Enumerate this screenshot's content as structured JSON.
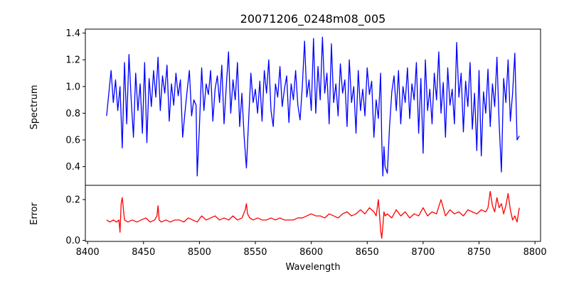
{
  "chart_data": [
    {
      "type": "line",
      "title": "20071206_0248m08_005",
      "xlabel": "",
      "ylabel": "Spectrum",
      "xlim": [
        8398,
        8805
      ],
      "ylim": [
        0.26,
        1.43
      ],
      "yticks": [
        0.4,
        0.6,
        0.8,
        1.0,
        1.2,
        1.4
      ],
      "ytick_labels": [
        "0.4",
        "0.6",
        "0.8",
        "1.0",
        "1.2",
        "1.4"
      ],
      "color": "#0000ff",
      "series": [
        {
          "x": [
            8417,
            8419,
            8421,
            8423,
            8425,
            8427,
            8429,
            8431,
            8433,
            8435,
            8437,
            8439,
            8441,
            8443,
            8445,
            8447,
            8449,
            8451,
            8453,
            8455,
            8457,
            8459,
            8461,
            8463,
            8465,
            8467,
            8469,
            8471,
            8473,
            8475,
            8477,
            8479,
            8481,
            8483,
            8485,
            8487,
            8489,
            8491,
            8493,
            8495,
            8497,
            8498,
            8500,
            8502,
            8504,
            8506,
            8508,
            8510,
            8512,
            8514,
            8516,
            8518,
            8520,
            8522,
            8524,
            8526,
            8528,
            8530,
            8532,
            8534,
            8536,
            8538,
            8540,
            8542,
            8544,
            8546,
            8548,
            8550,
            8552,
            8554,
            8556,
            8558,
            8560,
            8562,
            8564,
            8566,
            8568,
            8570,
            8572,
            8574,
            8576,
            8578,
            8580,
            8582,
            8584,
            8586,
            8588,
            8590,
            8592,
            8594,
            8596,
            8598,
            8600,
            8602,
            8604,
            8606,
            8608,
            8610,
            8612,
            8614,
            8616,
            8618,
            8620,
            8622,
            8624,
            8626,
            8628,
            8630,
            8632,
            8634,
            8636,
            8638,
            8640,
            8642,
            8644,
            8646,
            8648,
            8650,
            8652,
            8654,
            8656,
            8658,
            8660,
            8662,
            8663,
            8664,
            8665,
            8666,
            8668,
            8670,
            8672,
            8674,
            8676,
            8678,
            8680,
            8682,
            8684,
            8686,
            8688,
            8690,
            8692,
            8694,
            8696,
            8698,
            8700,
            8702,
            8704,
            8706,
            8708,
            8710,
            8712,
            8714,
            8716,
            8718,
            8720,
            8722,
            8724,
            8726,
            8728,
            8730,
            8732,
            8734,
            8736,
            8738,
            8740,
            8742,
            8744,
            8746,
            8748,
            8750,
            8752,
            8754,
            8756,
            8758,
            8760,
            8762,
            8764,
            8766,
            8768,
            8770,
            8772,
            8774,
            8776,
            8778,
            8780,
            8782,
            8784,
            8786
          ],
          "y": [
            0.78,
            0.95,
            1.12,
            0.88,
            1.05,
            0.82,
            1.0,
            0.54,
            1.18,
            0.72,
            1.24,
            0.9,
            0.62,
            1.1,
            0.82,
            1.02,
            0.65,
            1.18,
            0.58,
            1.06,
            0.85,
            1.12,
            0.92,
            1.22,
            0.82,
            1.08,
            0.95,
            1.16,
            0.74,
            1.02,
            0.86,
            1.1,
            0.93,
            1.05,
            0.62,
            0.8,
            0.97,
            1.12,
            0.78,
            0.9,
            0.86,
            0.33,
            0.7,
            1.14,
            0.82,
            1.02,
            0.94,
            1.12,
            0.74,
            0.98,
            1.08,
            0.88,
            1.16,
            0.72,
            1.0,
            1.26,
            0.8,
            1.05,
            0.9,
            1.18,
            0.7,
            0.95,
            0.62,
            0.39,
            0.75,
            1.1,
            0.88,
            0.98,
            0.8,
            1.04,
            0.74,
            1.12,
            0.95,
            1.2,
            0.82,
            0.7,
            1.02,
            0.92,
            1.15,
            0.85,
            0.98,
            1.08,
            0.73,
            1.02,
            0.9,
            1.12,
            0.86,
            0.75,
            1.0,
            1.34,
            0.92,
            1.05,
            0.82,
            1.36,
            0.8,
            1.15,
            0.9,
            1.37,
            0.95,
            1.1,
            0.72,
            1.32,
            0.88,
            1.02,
            0.78,
            1.17,
            0.95,
            1.05,
            0.7,
            1.2,
            0.88,
            1.0,
            0.65,
            1.12,
            0.82,
            0.98,
            0.78,
            1.14,
            0.94,
            1.04,
            0.62,
            0.9,
            0.76,
            1.1,
            0.6,
            0.33,
            0.55,
            0.4,
            0.35,
            0.7,
            0.96,
            1.08,
            0.82,
            1.12,
            0.72,
            1.0,
            0.88,
            1.14,
            0.76,
            1.02,
            0.9,
            1.18,
            0.65,
            1.06,
            0.5,
            1.2,
            0.82,
            0.98,
            0.72,
            1.1,
            0.9,
            1.26,
            0.8,
            1.03,
            0.62,
            1.14,
            0.86,
            0.98,
            0.72,
            1.33,
            0.92,
            1.1,
            0.66,
            1.04,
            0.85,
            1.18,
            0.68,
            0.95,
            0.52,
            1.12,
            0.48,
            0.96,
            0.8,
            1.13,
            0.7,
            1.02,
            0.85,
            1.22,
            0.72,
            0.36,
            1.06,
            0.88,
            1.2,
            0.74,
            0.95,
            1.25,
            0.6,
            0.63
          ]
        }
      ]
    },
    {
      "type": "line",
      "title": "",
      "xlabel": "Wavelength",
      "ylabel": "Error",
      "xlim": [
        8398,
        8805
      ],
      "ylim": [
        -0.005,
        0.27
      ],
      "yticks": [
        0.0,
        0.2
      ],
      "ytick_labels": [
        "0.0",
        "0.2"
      ],
      "xticks": [
        8400,
        8450,
        8500,
        8550,
        8600,
        8650,
        8700,
        8750,
        8800
      ],
      "xtick_labels": [
        "8400",
        "8450",
        "8500",
        "8550",
        "8600",
        "8650",
        "8700",
        "8750",
        "8800"
      ],
      "color": "#ff0000",
      "series": [
        {
          "x": [
            8417,
            8420,
            8423,
            8426,
            8428,
            8429,
            8430,
            8431,
            8433,
            8436,
            8440,
            8444,
            8448,
            8452,
            8456,
            8460,
            8462,
            8463,
            8464,
            8466,
            8470,
            8474,
            8478,
            8482,
            8486,
            8490,
            8494,
            8498,
            8502,
            8506,
            8510,
            8514,
            8518,
            8522,
            8526,
            8530,
            8534,
            8538,
            8541,
            8542,
            8543,
            8545,
            8548,
            8552,
            8556,
            8560,
            8564,
            8568,
            8572,
            8576,
            8580,
            8584,
            8588,
            8592,
            8596,
            8600,
            8604,
            8608,
            8612,
            8616,
            8620,
            8624,
            8628,
            8632,
            8636,
            8640,
            8644,
            8648,
            8652,
            8656,
            8658,
            8660,
            8661,
            8662,
            8663,
            8664,
            8665,
            8666,
            8668,
            8672,
            8676,
            8680,
            8684,
            8688,
            8692,
            8696,
            8700,
            8704,
            8708,
            8712,
            8716,
            8720,
            8724,
            8728,
            8732,
            8736,
            8740,
            8744,
            8748,
            8752,
            8756,
            8758,
            8760,
            8762,
            8764,
            8766,
            8768,
            8770,
            8772,
            8774,
            8776,
            8778,
            8780,
            8782,
            8784,
            8786
          ],
          "y": [
            0.1,
            0.09,
            0.1,
            0.09,
            0.1,
            0.04,
            0.18,
            0.21,
            0.1,
            0.09,
            0.1,
            0.09,
            0.1,
            0.11,
            0.09,
            0.1,
            0.12,
            0.17,
            0.1,
            0.09,
            0.1,
            0.09,
            0.1,
            0.1,
            0.09,
            0.11,
            0.1,
            0.09,
            0.12,
            0.1,
            0.11,
            0.12,
            0.1,
            0.11,
            0.1,
            0.12,
            0.1,
            0.11,
            0.15,
            0.18,
            0.13,
            0.11,
            0.1,
            0.11,
            0.1,
            0.1,
            0.11,
            0.1,
            0.11,
            0.1,
            0.1,
            0.1,
            0.11,
            0.11,
            0.12,
            0.13,
            0.12,
            0.12,
            0.11,
            0.13,
            0.12,
            0.11,
            0.13,
            0.14,
            0.12,
            0.13,
            0.15,
            0.13,
            0.16,
            0.14,
            0.12,
            0.2,
            0.13,
            0.05,
            0.01,
            0.07,
            0.14,
            0.12,
            0.13,
            0.11,
            0.15,
            0.12,
            0.14,
            0.11,
            0.13,
            0.12,
            0.16,
            0.12,
            0.14,
            0.13,
            0.2,
            0.12,
            0.15,
            0.13,
            0.14,
            0.12,
            0.15,
            0.14,
            0.13,
            0.15,
            0.14,
            0.16,
            0.24,
            0.17,
            0.14,
            0.21,
            0.16,
            0.18,
            0.13,
            0.17,
            0.23,
            0.15,
            0.1,
            0.12,
            0.09,
            0.16
          ]
        }
      ]
    }
  ]
}
